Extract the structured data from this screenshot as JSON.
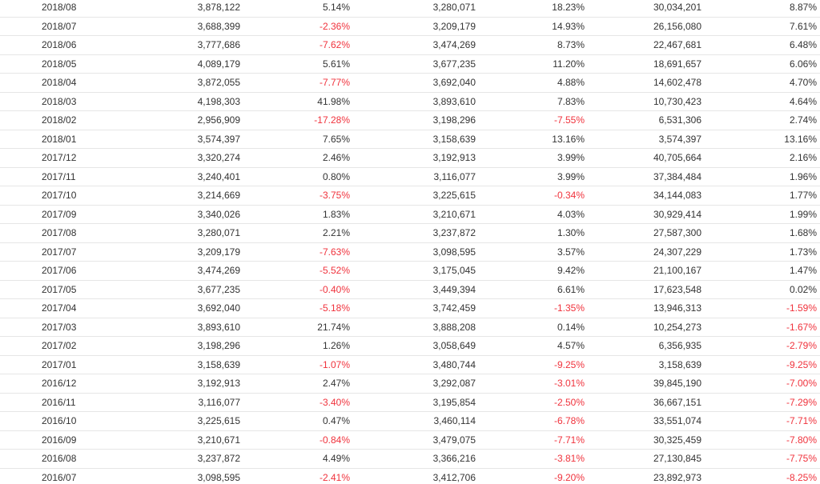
{
  "table": {
    "rows": [
      [
        "2018/08",
        "3,878,122",
        "5.14%",
        "3,280,071",
        "18.23%",
        "30,034,201",
        "8.87%"
      ],
      [
        "2018/07",
        "3,688,399",
        "-2.36%",
        "3,209,179",
        "14.93%",
        "26,156,080",
        "7.61%"
      ],
      [
        "2018/06",
        "3,777,686",
        "-7.62%",
        "3,474,269",
        "8.73%",
        "22,467,681",
        "6.48%"
      ],
      [
        "2018/05",
        "4,089,179",
        "5.61%",
        "3,677,235",
        "11.20%",
        "18,691,657",
        "6.06%"
      ],
      [
        "2018/04",
        "3,872,055",
        "-7.77%",
        "3,692,040",
        "4.88%",
        "14,602,478",
        "4.70%"
      ],
      [
        "2018/03",
        "4,198,303",
        "41.98%",
        "3,893,610",
        "7.83%",
        "10,730,423",
        "4.64%"
      ],
      [
        "2018/02",
        "2,956,909",
        "-17.28%",
        "3,198,296",
        "-7.55%",
        "6,531,306",
        "2.74%"
      ],
      [
        "2018/01",
        "3,574,397",
        "7.65%",
        "3,158,639",
        "13.16%",
        "3,574,397",
        "13.16%"
      ],
      [
        "2017/12",
        "3,320,274",
        "2.46%",
        "3,192,913",
        "3.99%",
        "40,705,664",
        "2.16%"
      ],
      [
        "2017/11",
        "3,240,401",
        "0.80%",
        "3,116,077",
        "3.99%",
        "37,384,484",
        "1.96%"
      ],
      [
        "2017/10",
        "3,214,669",
        "-3.75%",
        "3,225,615",
        "-0.34%",
        "34,144,083",
        "1.77%"
      ],
      [
        "2017/09",
        "3,340,026",
        "1.83%",
        "3,210,671",
        "4.03%",
        "30,929,414",
        "1.99%"
      ],
      [
        "2017/08",
        "3,280,071",
        "2.21%",
        "3,237,872",
        "1.30%",
        "27,587,300",
        "1.68%"
      ],
      [
        "2017/07",
        "3,209,179",
        "-7.63%",
        "3,098,595",
        "3.57%",
        "24,307,229",
        "1.73%"
      ],
      [
        "2017/06",
        "3,474,269",
        "-5.52%",
        "3,175,045",
        "9.42%",
        "21,100,167",
        "1.47%"
      ],
      [
        "2017/05",
        "3,677,235",
        "-0.40%",
        "3,449,394",
        "6.61%",
        "17,623,548",
        "0.02%"
      ],
      [
        "2017/04",
        "3,692,040",
        "-5.18%",
        "3,742,459",
        "-1.35%",
        "13,946,313",
        "-1.59%"
      ],
      [
        "2017/03",
        "3,893,610",
        "21.74%",
        "3,888,208",
        "0.14%",
        "10,254,273",
        "-1.67%"
      ],
      [
        "2017/02",
        "3,198,296",
        "1.26%",
        "3,058,649",
        "4.57%",
        "6,356,935",
        "-2.79%"
      ],
      [
        "2017/01",
        "3,158,639",
        "-1.07%",
        "3,480,744",
        "-9.25%",
        "3,158,639",
        "-9.25%"
      ],
      [
        "2016/12",
        "3,192,913",
        "2.47%",
        "3,292,087",
        "-3.01%",
        "39,845,190",
        "-7.00%"
      ],
      [
        "2016/11",
        "3,116,077",
        "-3.40%",
        "3,195,854",
        "-2.50%",
        "36,667,151",
        "-7.29%"
      ],
      [
        "2016/10",
        "3,225,615",
        "0.47%",
        "3,460,114",
        "-6.78%",
        "33,551,074",
        "-7.71%"
      ],
      [
        "2016/09",
        "3,210,671",
        "-0.84%",
        "3,479,075",
        "-7.71%",
        "30,325,459",
        "-7.80%"
      ],
      [
        "2016/08",
        "3,237,872",
        "4.49%",
        "3,366,216",
        "-3.81%",
        "27,130,845",
        "-7.75%"
      ],
      [
        "2016/07",
        "3,098,595",
        "-2.41%",
        "3,412,706",
        "-9.20%",
        "23,892,973",
        "-8.25%"
      ]
    ]
  }
}
